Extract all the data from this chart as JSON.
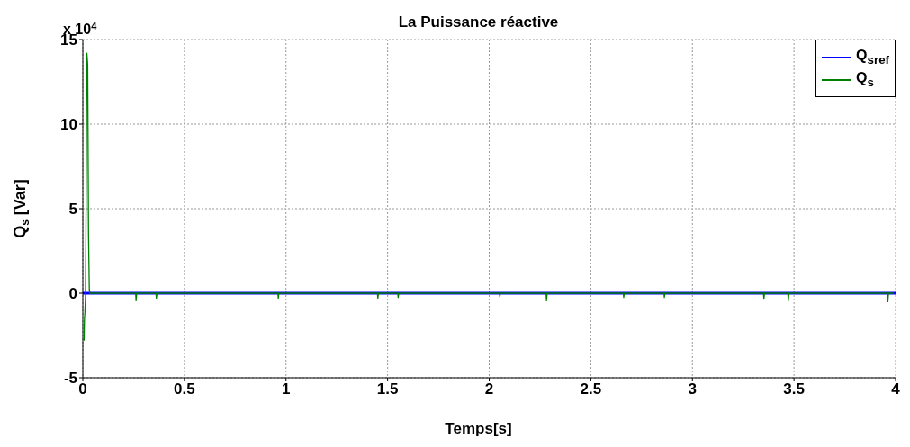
{
  "chart_data": {
    "type": "line",
    "title": "La Puissance réactive",
    "xlabel": "Temps[s]",
    "ylabel": "Q$_{s}$ [Var]",
    "annotations": [
      "x 10$^{4}$"
    ],
    "xlim": [
      0,
      4
    ],
    "xticks": [
      0,
      0.5,
      1,
      1.5,
      2,
      2.5,
      3,
      3.5,
      4
    ],
    "ylim": [
      -5,
      15
    ],
    "yticks": [
      -5,
      0,
      5,
      10,
      15
    ],
    "grid": true,
    "legend": "top right",
    "line_style": "solid",
    "marker": "none",
    "series": [
      {
        "name": "Q$_{sref}$",
        "color": "#0000ff",
        "x": [
          0,
          4
        ],
        "values": [
          0,
          0
        ]
      },
      {
        "name": "Q$_{s}$",
        "color": "#008000",
        "x": [
          0.006,
          0.008,
          0.01,
          0.013,
          0.016,
          0.02,
          0.024,
          0.028,
          0.032,
          0.036,
          0.26,
          0.262,
          0.265,
          0.36,
          0.362,
          0.365,
          0.96,
          0.962,
          0.965,
          1.45,
          1.452,
          1.455,
          1.55,
          1.552,
          1.555,
          2.05,
          2.052,
          2.055,
          2.28,
          2.282,
          2.285,
          2.66,
          2.662,
          2.665,
          2.86,
          2.862,
          2.865,
          3.35,
          3.352,
          3.355,
          3.47,
          3.472,
          3.475,
          3.96,
          3.962,
          3.965,
          3.99
        ],
        "values": [
          -2.8,
          -1.5,
          -1.2,
          -0.3,
          5,
          14.2,
          13.5,
          3.5,
          0.2,
          0,
          0,
          -0.45,
          0,
          0,
          -0.3,
          0,
          0,
          -0.3,
          0,
          0,
          -0.3,
          0,
          0,
          -0.25,
          0,
          0,
          -0.2,
          0,
          0,
          -0.45,
          0,
          0,
          -0.25,
          0,
          0,
          -0.25,
          0,
          0,
          -0.35,
          0,
          0,
          -0.45,
          0,
          0,
          -0.5,
          0,
          0
        ]
      }
    ]
  }
}
